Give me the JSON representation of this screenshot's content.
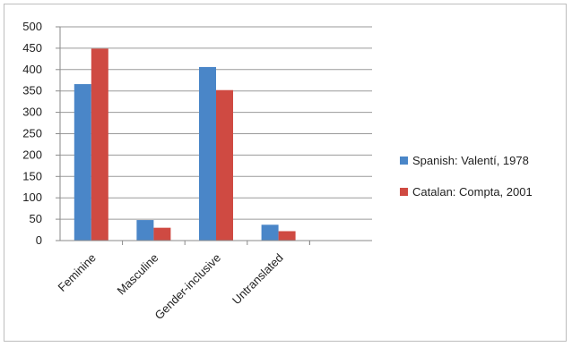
{
  "chart_data": {
    "type": "bar",
    "title": "",
    "xlabel": "",
    "ylabel": "",
    "categories": [
      "Feminine",
      "Masculine",
      "Gender-inclusive",
      "Untranslated"
    ],
    "series": [
      {
        "name": "Spanish: Valentí, 1978",
        "values": [
          366,
          48,
          406,
          37
        ],
        "color": "#4a86c8"
      },
      {
        "name": "Catalan: Compta, 2001",
        "values": [
          449,
          30,
          352,
          22
        ],
        "color": "#cf4a42"
      }
    ],
    "ylim": [
      0,
      500
    ],
    "yticks": [
      0,
      50,
      100,
      150,
      200,
      250,
      300,
      350,
      400,
      450,
      500
    ],
    "grid": true,
    "legend_position": "right"
  }
}
